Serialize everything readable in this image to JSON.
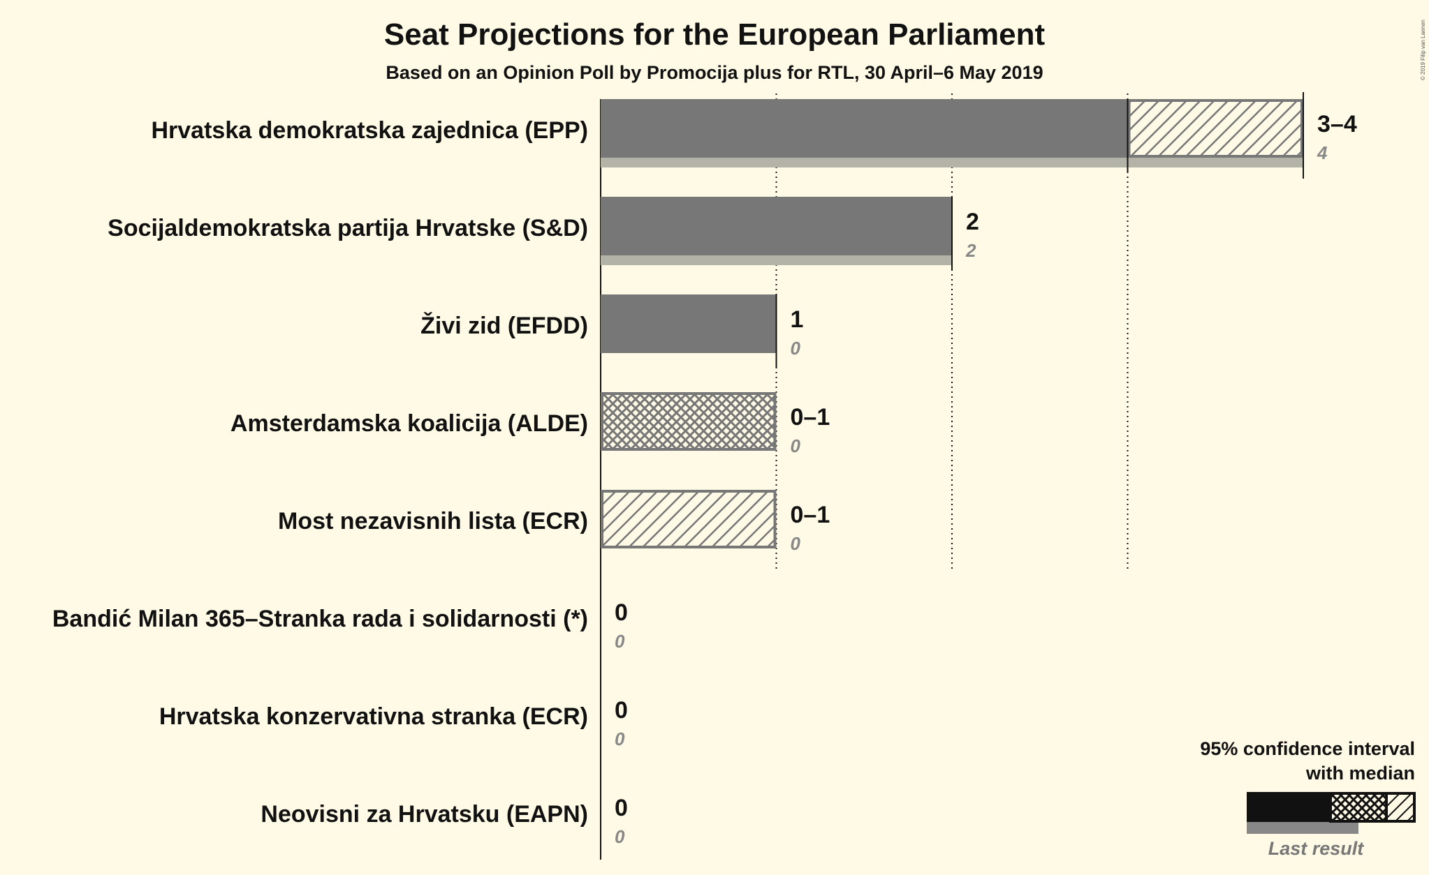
{
  "title": "Seat Projections for the European Parliament",
  "subtitle": "Based on an Opinion Poll by Promocija plus for RTL, 30 April–6 May 2019",
  "copyright": "© 2019 Filip van Laenen",
  "colors": {
    "background": "#fffae6",
    "median_bar": "#777777",
    "last_result": "#b3b3a8",
    "hatch": "#777777",
    "legend_dark": "#111111",
    "legend_last": "#888888"
  },
  "legend": {
    "line1": "95% confidence interval",
    "line2": "with median",
    "last_result": "Last result"
  },
  "chart_data": {
    "type": "bar",
    "orientation": "horizontal",
    "xlim": [
      0,
      4
    ],
    "grid_lines": [
      1,
      2,
      3
    ],
    "categories": [
      "Hrvatska demokratska zajednica (EPP)",
      "Socijaldemokratska partija Hrvatske (S&D)",
      "Živi zid (EFDD)",
      "Amsterdamska koalicija (ALDE)",
      "Most nezavisnih lista (ECR)",
      "Bandić Milan 365–Stranka rada i solidarnosti (*)",
      "Hrvatska konzervativna stranka (ECR)",
      "Neovisni za Hrvatsku (EAPN)"
    ],
    "series": [
      {
        "name": "ci_low",
        "values": [
          3,
          2,
          1,
          0,
          0,
          0,
          0,
          0
        ]
      },
      {
        "name": "median",
        "values": [
          3,
          2,
          1,
          0,
          0,
          0,
          0,
          0
        ]
      },
      {
        "name": "ci_high",
        "values": [
          4,
          2,
          1,
          1,
          1,
          0,
          0,
          0
        ]
      },
      {
        "name": "Last result",
        "values": [
          4,
          2,
          0,
          0,
          0,
          0,
          0,
          0
        ]
      }
    ],
    "range_labels": [
      "3–4",
      "2",
      "1",
      "0–1",
      "0–1",
      "0",
      "0",
      "0"
    ],
    "last_labels": [
      "4",
      "2",
      "0",
      "0",
      "0",
      "0",
      "0",
      "0"
    ]
  }
}
